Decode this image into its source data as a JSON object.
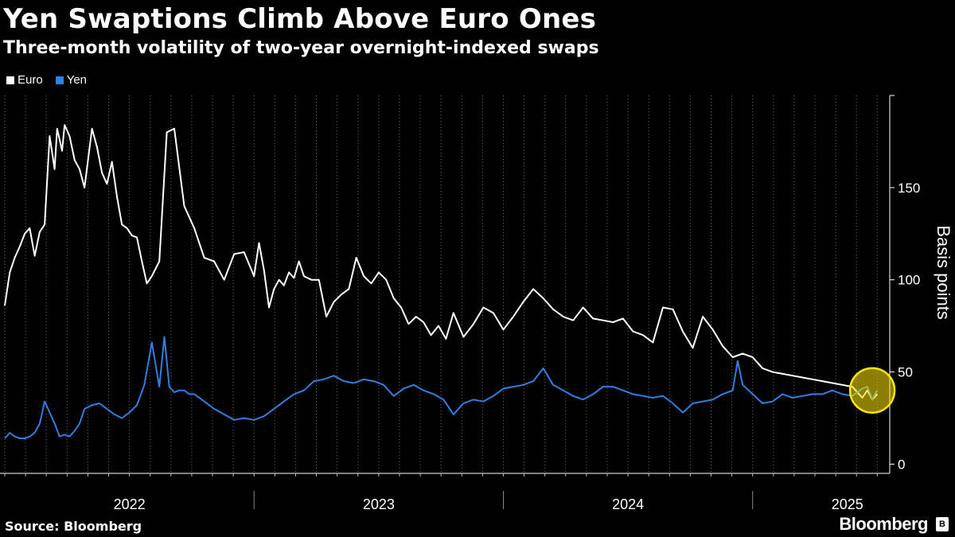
{
  "header": {
    "title": "Yen Swaptions Climb Above Euro Ones",
    "subtitle": "Three-month volatility of two-year overnight-indexed swaps"
  },
  "legend": [
    {
      "label": "Euro",
      "color": "#ffffff"
    },
    {
      "label": "Yen",
      "color": "#2f7fe0"
    }
  ],
  "footer": {
    "source": "Source: Bloomberg",
    "brand": "Bloomberg"
  },
  "chart_data": {
    "type": "line",
    "title": "Yen Swaptions Climb Above Euro Ones",
    "subtitle": "Three-month volatility of two-year overnight-indexed swaps",
    "xlabel": "",
    "ylabel": "Basis points",
    "ylim": [
      -5,
      200
    ],
    "xlim": [
      2022.0,
      2025.55
    ],
    "yticks": [
      0,
      50,
      100,
      150
    ],
    "year_labels": [
      {
        "label": "2022",
        "x": 2022.5
      },
      {
        "label": "2023",
        "x": 2023.5
      },
      {
        "label": "2024",
        "x": 2024.5
      },
      {
        "label": "2025",
        "x": 2025.38
      }
    ],
    "year_separators": [
      2023.0,
      2024.0,
      2025.0
    ],
    "grid": "vertical-dotted",
    "highlight": {
      "x": 2025.48,
      "y": 40,
      "color": "#ffe600"
    },
    "series": [
      {
        "name": "Euro",
        "color": "#ffffff",
        "x": [
          2022.0,
          2022.02,
          2022.04,
          2022.06,
          2022.08,
          2022.1,
          2022.12,
          2022.14,
          2022.16,
          2022.18,
          2022.2,
          2022.21,
          2022.23,
          2022.24,
          2022.26,
          2022.28,
          2022.3,
          2022.32,
          2022.35,
          2022.37,
          2022.39,
          2022.41,
          2022.43,
          2022.45,
          2022.47,
          2022.49,
          2022.51,
          2022.53,
          2022.55,
          2022.57,
          2022.59,
          2022.62,
          2022.65,
          2022.68,
          2022.72,
          2022.76,
          2022.8,
          2022.84,
          2022.88,
          2022.92,
          2022.96,
          2023.0,
          2023.02,
          2023.04,
          2023.06,
          2023.08,
          2023.1,
          2023.12,
          2023.14,
          2023.16,
          2023.18,
          2023.2,
          2023.23,
          2023.26,
          2023.29,
          2023.32,
          2023.35,
          2023.38,
          2023.41,
          2023.44,
          2023.47,
          2023.5,
          2023.53,
          2023.56,
          2023.59,
          2023.62,
          2023.65,
          2023.68,
          2023.71,
          2023.74,
          2023.77,
          2023.8,
          2023.84,
          2023.88,
          2023.92,
          2023.96,
          2024.0,
          2024.04,
          2024.08,
          2024.12,
          2024.16,
          2024.2,
          2024.24,
          2024.28,
          2024.32,
          2024.36,
          2024.4,
          2024.44,
          2024.48,
          2024.52,
          2024.56,
          2024.6,
          2024.64,
          2024.68,
          2024.72,
          2024.76,
          2024.8,
          2024.84,
          2024.88,
          2024.92,
          2024.96,
          2025.0,
          2025.04,
          2025.08,
          2025.12,
          2025.16,
          2025.2,
          2025.24,
          2025.28,
          2025.32,
          2025.36,
          2025.4,
          2025.44,
          2025.46,
          2025.48,
          2025.5
        ],
        "values": [
          86,
          104,
          112,
          118,
          125,
          128,
          113,
          126,
          130,
          178,
          160,
          182,
          170,
          184,
          178,
          165,
          160,
          150,
          182,
          172,
          158,
          152,
          164,
          145,
          130,
          128,
          124,
          123,
          110,
          98,
          102,
          110,
          180,
          182,
          140,
          128,
          112,
          110,
          100,
          114,
          115,
          102,
          120,
          105,
          85,
          95,
          100,
          97,
          104,
          101,
          110,
          102,
          100,
          100,
          80,
          88,
          92,
          95,
          112,
          102,
          98,
          104,
          100,
          90,
          85,
          76,
          80,
          77,
          70,
          75,
          68,
          82,
          69,
          76,
          85,
          82,
          73,
          80,
          88,
          95,
          90,
          84,
          80,
          78,
          85,
          79,
          78,
          77,
          79,
          72,
          70,
          66,
          85,
          84,
          72,
          63,
          80,
          73,
          64,
          58,
          60,
          58,
          52,
          50,
          49,
          48,
          47,
          46,
          45,
          44,
          43,
          42,
          36,
          40,
          35,
          38
        ]
      },
      {
        "name": "Yen",
        "color": "#2f7fe0",
        "x": [
          2022.0,
          2022.02,
          2022.04,
          2022.06,
          2022.08,
          2022.1,
          2022.12,
          2022.14,
          2022.16,
          2022.18,
          2022.2,
          2022.22,
          2022.24,
          2022.26,
          2022.28,
          2022.3,
          2022.32,
          2022.35,
          2022.38,
          2022.41,
          2022.44,
          2022.47,
          2022.5,
          2022.53,
          2022.56,
          2022.59,
          2022.62,
          2022.64,
          2022.66,
          2022.68,
          2022.7,
          2022.72,
          2022.74,
          2022.76,
          2022.8,
          2022.84,
          2022.88,
          2022.92,
          2022.96,
          2023.0,
          2023.04,
          2023.08,
          2023.12,
          2023.16,
          2023.2,
          2023.24,
          2023.28,
          2023.32,
          2023.36,
          2023.4,
          2023.44,
          2023.48,
          2023.52,
          2023.56,
          2023.6,
          2023.64,
          2023.68,
          2023.72,
          2023.76,
          2023.8,
          2023.84,
          2023.88,
          2023.92,
          2023.96,
          2024.0,
          2024.04,
          2024.08,
          2024.12,
          2024.16,
          2024.2,
          2024.24,
          2024.28,
          2024.32,
          2024.36,
          2024.4,
          2024.44,
          2024.48,
          2024.52,
          2024.56,
          2024.6,
          2024.64,
          2024.68,
          2024.72,
          2024.76,
          2024.8,
          2024.84,
          2024.88,
          2024.92,
          2024.94,
          2024.96,
          2025.0,
          2025.04,
          2025.08,
          2025.12,
          2025.16,
          2025.2,
          2025.24,
          2025.28,
          2025.32,
          2025.36,
          2025.4,
          2025.44,
          2025.46,
          2025.48,
          2025.5
        ],
        "values": [
          14,
          17,
          15,
          14,
          14,
          15,
          17,
          22,
          34,
          28,
          22,
          15,
          16,
          15,
          18,
          22,
          30,
          32,
          33,
          30,
          27,
          25,
          28,
          32,
          43,
          66,
          42,
          69,
          42,
          39,
          40,
          40,
          38,
          38,
          34,
          30,
          27,
          24,
          25,
          24,
          26,
          30,
          34,
          38,
          40,
          45,
          46,
          48,
          45,
          44,
          46,
          45,
          43,
          37,
          41,
          43,
          40,
          38,
          35,
          27,
          33,
          35,
          34,
          37,
          41,
          42,
          43,
          45,
          52,
          43,
          40,
          37,
          35,
          38,
          42,
          42,
          40,
          38,
          37,
          36,
          37,
          33,
          28,
          33,
          34,
          35,
          38,
          40,
          56,
          43,
          38,
          33,
          34,
          38,
          36,
          37,
          38,
          38,
          40,
          38,
          37,
          41,
          42,
          35,
          40
        ]
      }
    ]
  }
}
